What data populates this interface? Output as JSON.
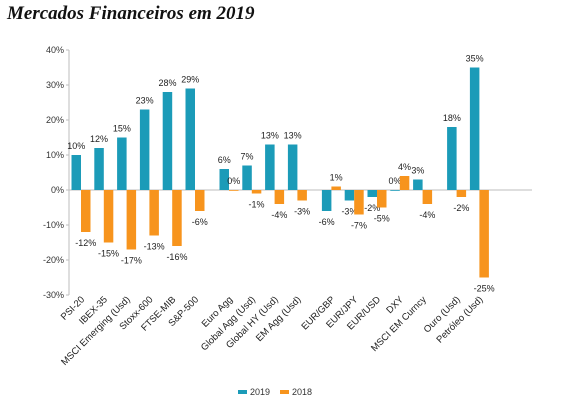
{
  "chart_data": {
    "type": "bar",
    "title": "Mercados Financeiros em 2019",
    "xlabel": "",
    "ylabel": "",
    "ylim": [
      -30,
      40
    ],
    "yticks": [
      "40%",
      "30%",
      "20%",
      "10%",
      "0%",
      "-10%",
      "-20%",
      "-30%"
    ],
    "ytick_values": [
      40,
      30,
      20,
      10,
      0,
      -10,
      -20,
      -30
    ],
    "categories": [
      "PSI-20",
      "IBEX-35",
      "MSCI Emerging (Usd)",
      "Stoxx-600",
      "FTSE-MIB",
      "S&P-500",
      "Euro Agg",
      "Global Agg (Usd)",
      "Global HY (Usd)",
      "EM Agg (Usd)",
      "EUR/GBP",
      "EUR/JPY",
      "EUR/USD",
      "DXY",
      "MSCI EM Curncy",
      "Ouro (Usd)",
      "Petróleo (Usd)"
    ],
    "groups": [
      [
        0,
        1,
        2,
        3,
        4,
        5
      ],
      [
        6,
        7,
        8,
        9
      ],
      [
        10,
        11,
        12,
        13,
        14
      ],
      [
        15,
        16
      ]
    ],
    "series": [
      {
        "name": "2019",
        "color": "#1b9bb8",
        "values": [
          10,
          12,
          15,
          23,
          28,
          29,
          6,
          7,
          13,
          13,
          -6,
          -3,
          -2,
          0,
          3,
          18,
          35
        ],
        "labels": [
          "10%",
          "12%",
          "15%",
          "23%",
          "28%",
          "29%",
          "6%",
          "7%",
          "13%",
          "13%",
          "-6%",
          "-3%",
          "-2%",
          "0%",
          "3%",
          "18%",
          "35%"
        ]
      },
      {
        "name": "2018",
        "color": "#f7941d",
        "values": [
          -12,
          -15,
          -17,
          -13,
          -16,
          -6,
          0,
          -1,
          -4,
          -3,
          1,
          -7,
          -5,
          4,
          -4,
          -2,
          -25
        ],
        "labels": [
          "-12%",
          "-15%",
          "-17%",
          "-13%",
          "-16%",
          "-6%",
          "0%",
          "-1%",
          "-4%",
          "-3%",
          "1%",
          "-7%",
          "-5%",
          "4%",
          "-4%",
          "-2%",
          "-25%"
        ]
      }
    ],
    "grid": false,
    "legend_position": "bottom"
  }
}
